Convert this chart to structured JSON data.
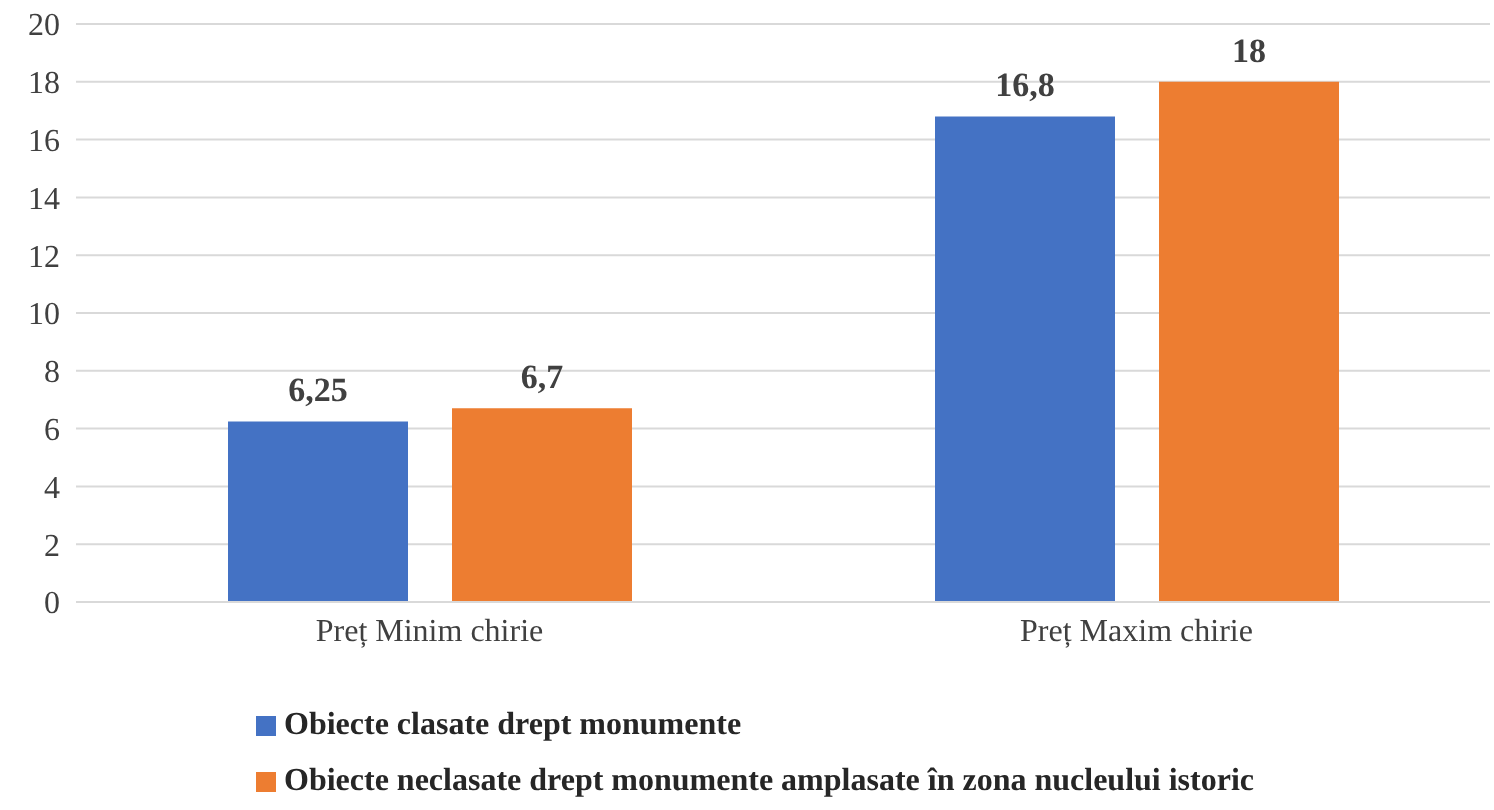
{
  "chart_data": {
    "type": "bar",
    "categories": [
      "Preț Minim chirie",
      "Preț Maxim chirie"
    ],
    "series": [
      {
        "name": "Obiecte clasate drept monumente",
        "color": "#4472c4",
        "values": [
          6.25,
          16.8
        ],
        "value_labels": [
          "6,25",
          "16,8"
        ]
      },
      {
        "name": "Obiecte neclasate drept monumente amplasate în zona nucleului istoric",
        "color": "#ed7d31",
        "values": [
          6.7,
          18
        ],
        "value_labels": [
          "6,7",
          "18"
        ]
      }
    ],
    "ylim": [
      0,
      20
    ],
    "yticks": [
      0,
      2,
      4,
      6,
      8,
      10,
      12,
      14,
      16,
      18,
      20
    ],
    "grid": "y",
    "legend": "bottom"
  }
}
